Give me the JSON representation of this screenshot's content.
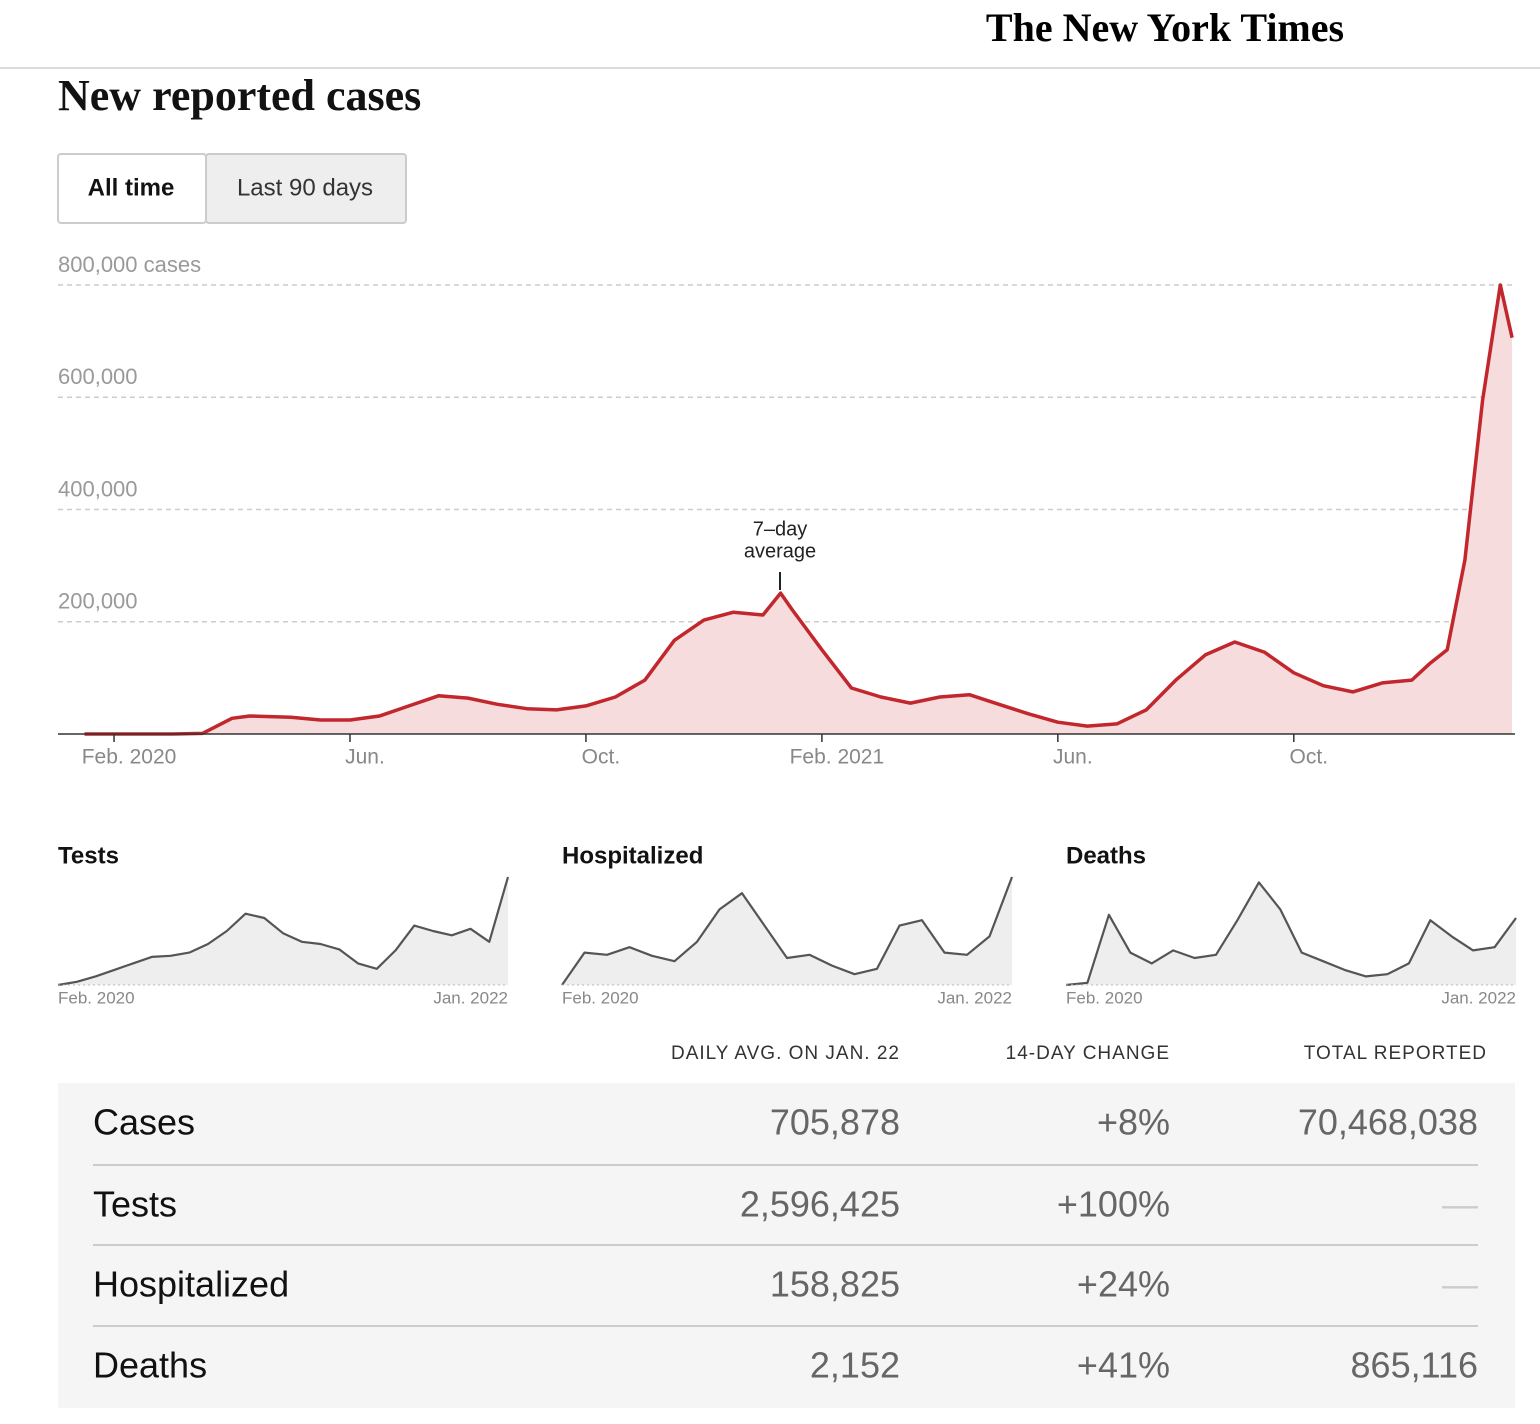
{
  "header": {
    "logo": "The New York Times"
  },
  "title": "New reported cases",
  "buttons": [
    "All time",
    "Last 90 days"
  ],
  "annotation": [
    "7–day",
    "average"
  ],
  "chart_data": [
    {
      "type": "area",
      "color": "#c1272d",
      "fill": "#f6dcdc",
      "x": [
        0.5,
        1,
        1.5,
        2,
        2.5,
        3,
        3.3,
        4,
        4.5,
        5,
        5.5,
        6,
        6.5,
        7,
        7.5,
        8,
        8.5,
        9,
        9.5,
        10,
        10.5,
        11,
        11.5,
        12,
        12.3,
        12.5,
        13,
        13.5,
        14,
        14.5,
        15,
        15.5,
        16,
        16.5,
        17,
        17.5,
        18,
        18.5,
        19,
        19.5,
        20,
        20.5,
        21,
        21.5,
        22,
        22.5,
        23,
        23.3,
        23.6,
        23.9,
        24.2,
        24.5,
        24.7
      ],
      "values": [
        0,
        0,
        0,
        0,
        1000,
        28000,
        32000,
        30000,
        25000,
        25000,
        32000,
        50000,
        68000,
        64000,
        53000,
        45000,
        43000,
        50000,
        66000,
        96000,
        167000,
        203000,
        217000,
        212000,
        251000,
        221000,
        150000,
        82000,
        66000,
        55000,
        66000,
        70000,
        53000,
        36000,
        21000,
        14000,
        18000,
        43000,
        96000,
        141000,
        164000,
        146000,
        109000,
        86000,
        75000,
        91000,
        96000,
        125000,
        150000,
        310000,
        595000,
        800000,
        706000
      ],
      "xlim": [
        0.05,
        24.75
      ],
      "ylim": [
        0,
        800000
      ],
      "xticks": [
        {
          "value": 1,
          "label": "Feb. 2020"
        },
        {
          "value": 5,
          "label": "Jun."
        },
        {
          "value": 9,
          "label": "Oct."
        },
        {
          "value": 13,
          "label": "Feb. 2021"
        },
        {
          "value": 17,
          "label": "Jun."
        },
        {
          "value": 21,
          "label": "Oct."
        }
      ],
      "yticks": [
        {
          "value": 200000,
          "label": "200,000"
        },
        {
          "value": 400000,
          "label": "400,000"
        },
        {
          "value": 600000,
          "label": "600,000"
        },
        {
          "value": 800000,
          "label": "800,000 cases"
        }
      ],
      "grid": true
    },
    {
      "type": "sparkline",
      "title": "Tests",
      "x_labels": [
        "Feb. 2020",
        "Jan. 2022"
      ],
      "ylim": [
        0,
        100
      ],
      "values": [
        0,
        3,
        8,
        14,
        20,
        26,
        27,
        30,
        38,
        50,
        66,
        62,
        48,
        40,
        38,
        33,
        20,
        15,
        32,
        55,
        50,
        46,
        52,
        40,
        100
      ]
    },
    {
      "type": "sparkline",
      "title": "Hospitalized",
      "x_labels": [
        "Feb. 2020",
        "Jan. 2022"
      ],
      "ylim": [
        0,
        100
      ],
      "values": [
        0,
        30,
        28,
        35,
        27,
        22,
        40,
        70,
        85,
        55,
        25,
        28,
        18,
        10,
        15,
        55,
        60,
        30,
        28,
        45,
        100
      ]
    },
    {
      "type": "sparkline",
      "title": "Deaths",
      "x_labels": [
        "Feb. 2020",
        "Jan. 2022"
      ],
      "ylim": [
        0,
        100
      ],
      "values": [
        0,
        2,
        65,
        30,
        20,
        32,
        25,
        28,
        60,
        95,
        70,
        30,
        22,
        14,
        8,
        10,
        20,
        60,
        45,
        32,
        35,
        62
      ]
    }
  ],
  "table": {
    "columns": [
      "DAILY AVG. ON JAN. 22",
      "14-DAY CHANGE",
      "TOTAL REPORTED"
    ],
    "rows": [
      {
        "name": "Cases",
        "values": [
          "705,878",
          "+8%",
          "70,468,038"
        ]
      },
      {
        "name": "Tests",
        "values": [
          "2,596,425",
          "+100%",
          "—"
        ]
      },
      {
        "name": "Hospitalized",
        "values": [
          "158,825",
          "+24%",
          "—"
        ]
      },
      {
        "name": "Deaths",
        "values": [
          "2,152",
          "+41%",
          "865,116"
        ]
      }
    ]
  }
}
